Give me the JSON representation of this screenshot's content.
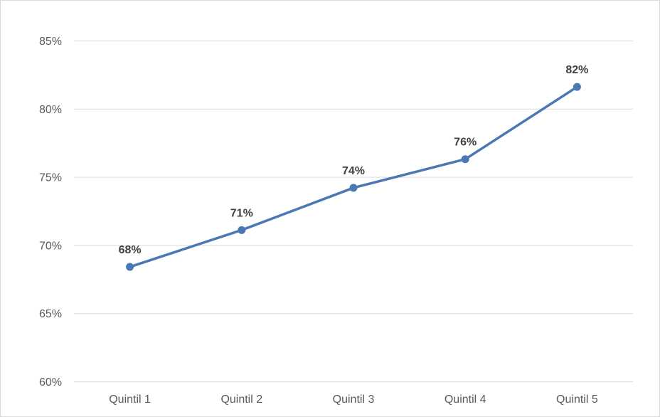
{
  "chart_data": {
    "type": "line",
    "categories": [
      "Quintil 1",
      "Quintil 2",
      "Quintil 3",
      "Quintil 4",
      "Quintil 5"
    ],
    "series": [
      {
        "values": [
          68.4,
          71.1,
          74.2,
          76.3,
          81.6
        ],
        "data_labels": [
          "68%",
          "71%",
          "74%",
          "76%",
          "82%"
        ],
        "color": "#4a78b3"
      }
    ],
    "y_ticks": [
      60,
      65,
      70,
      75,
      80,
      85
    ],
    "y_tick_labels": [
      "60%",
      "65%",
      "70%",
      "75%",
      "80%",
      "85%"
    ],
    "ylim": [
      60,
      85
    ],
    "grid": true,
    "legend": "none",
    "gridline_color": "#d9d9d9",
    "line_color": "#4a78b3"
  }
}
